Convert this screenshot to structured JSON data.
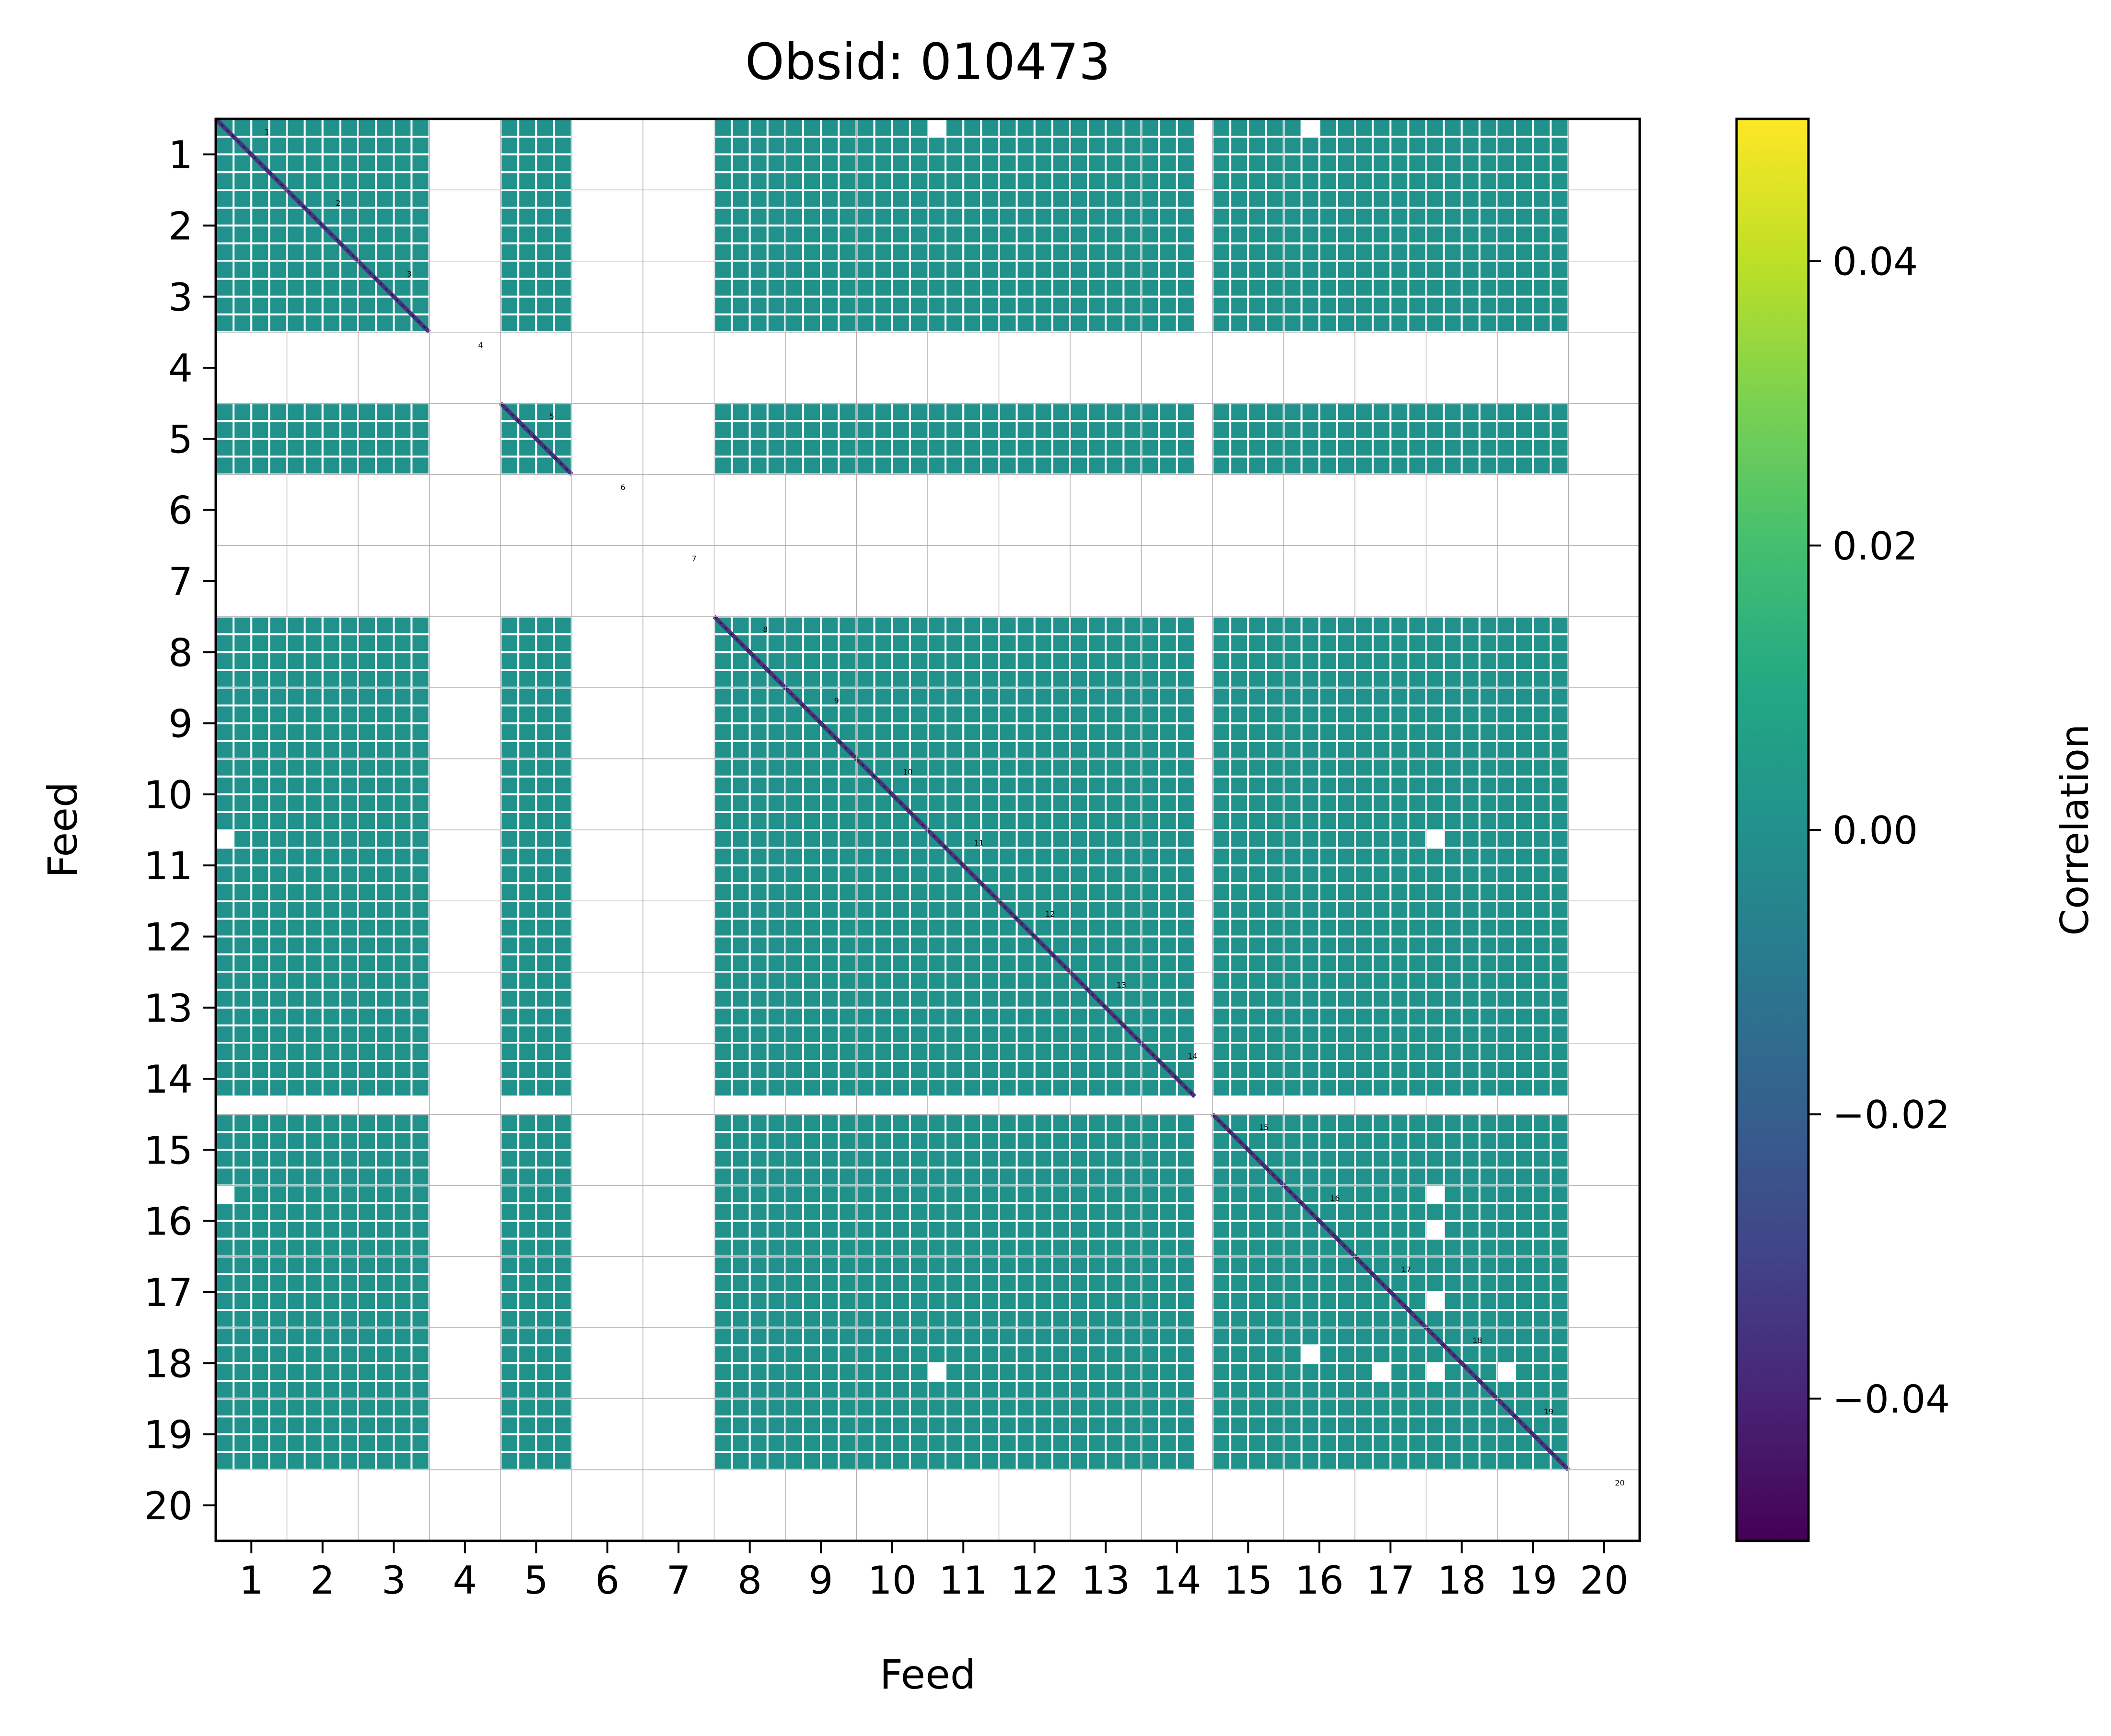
{
  "chart_data": {
    "type": "heatmap",
    "title": "Obsid: 010473",
    "xlabel": "Feed",
    "ylabel": "Feed",
    "x_tick_labels": [
      "1",
      "2",
      "3",
      "4",
      "5",
      "6",
      "7",
      "8",
      "9",
      "10",
      "11",
      "12",
      "13",
      "14",
      "15",
      "16",
      "17",
      "18",
      "19",
      "20"
    ],
    "y_tick_labels": [
      "1",
      "2",
      "3",
      "4",
      "5",
      "6",
      "7",
      "8",
      "9",
      "10",
      "11",
      "12",
      "13",
      "14",
      "15",
      "16",
      "17",
      "18",
      "19",
      "20"
    ],
    "feeds": [
      1,
      2,
      3,
      4,
      5,
      6,
      7,
      8,
      9,
      10,
      11,
      12,
      13,
      14,
      15,
      16,
      17,
      18,
      19,
      20
    ],
    "sidebands_per_feed": 4,
    "masked_feeds": [
      4,
      6,
      7,
      20
    ],
    "masked_sidebands": [
      {
        "feed": 14,
        "sideband": 4
      }
    ],
    "masked_patches": [
      {
        "row_feed": 1,
        "row_sideband": 1,
        "col_feed": 11,
        "col_sideband": 1
      },
      {
        "row_feed": 1,
        "row_sideband": 1,
        "col_feed": 16,
        "col_sideband": 2
      },
      {
        "row_feed": 11,
        "row_sideband": 1,
        "col_feed": 1,
        "col_sideband": 1
      },
      {
        "row_feed": 11,
        "row_sideband": 1,
        "col_feed": 18,
        "col_sideband": 1
      },
      {
        "row_feed": 16,
        "row_sideband": 1,
        "col_feed": 1,
        "col_sideband": 1
      },
      {
        "row_feed": 16,
        "row_sideband": 1,
        "col_feed": 18,
        "col_sideband": 1
      },
      {
        "row_feed": 16,
        "row_sideband": 3,
        "col_feed": 18,
        "col_sideband": 1
      },
      {
        "row_feed": 17,
        "row_sideband": 3,
        "col_feed": 18,
        "col_sideband": 1
      },
      {
        "row_feed": 18,
        "row_sideband": 2,
        "col_feed": 16,
        "col_sideband": 2
      },
      {
        "row_feed": 18,
        "row_sideband": 3,
        "col_feed": 11,
        "col_sideband": 1
      },
      {
        "row_feed": 18,
        "row_sideband": 3,
        "col_feed": 17,
        "col_sideband": 2
      },
      {
        "row_feed": 18,
        "row_sideband": 3,
        "col_feed": 18,
        "col_sideband": 1
      },
      {
        "row_feed": 18,
        "row_sideband": 3,
        "col_feed": 19,
        "col_sideband": 1
      }
    ],
    "cell_value": 0.0,
    "diagonal_value": -0.05,
    "diagonal_labels": [
      "1",
      "2",
      "3",
      "4",
      "5",
      "6",
      "7",
      "8",
      "9",
      "10",
      "11",
      "12",
      "13",
      "14",
      "15",
      "16",
      "17",
      "18",
      "19",
      "20"
    ],
    "colorbar": {
      "label": "Correlation",
      "colormap": "viridis",
      "range": [
        -0.05,
        0.05
      ],
      "ticks": [
        -0.04,
        -0.02,
        0.0,
        0.02,
        0.04
      ],
      "tick_labels": [
        "−0.04",
        "−0.02",
        "0.00",
        "0.02",
        "0.04"
      ]
    },
    "grid": true,
    "cell_color": "#21918c",
    "diagonal_color": "#46337e"
  }
}
